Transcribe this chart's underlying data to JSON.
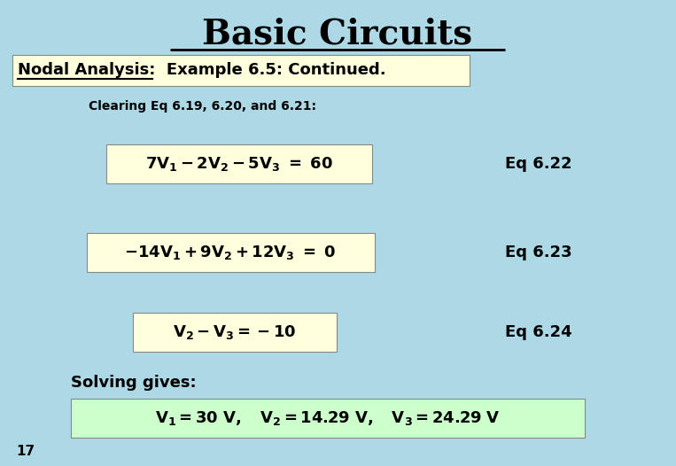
{
  "background_color": "#ADD8E6",
  "title": "Basic Circuits",
  "title_fontsize": 28,
  "subtitle": "Nodal Analysis:  Example 6.5: Continued.",
  "subtitle_fontsize": 13,
  "subtitle_bg": "#FFFFDD",
  "clearing_text": "Clearing Eq 6.19, 6.20, and 6.21:",
  "clearing_fontsize": 10,
  "eq1_main": "7V",
  "eq1_label": "Eq 6.22",
  "eq1_bg": "#FFFFDD",
  "eq2_label": "Eq 6.23",
  "eq2_bg": "#FFFFDD",
  "eq3_label": "Eq 6.24",
  "eq3_bg": "#FFFFDD",
  "solving_text": "Solving gives:",
  "solving_fontsize": 13,
  "solution_bg": "#CCFFCC",
  "page_num": "17",
  "eq_fontsize": 13,
  "label_fontsize": 13
}
